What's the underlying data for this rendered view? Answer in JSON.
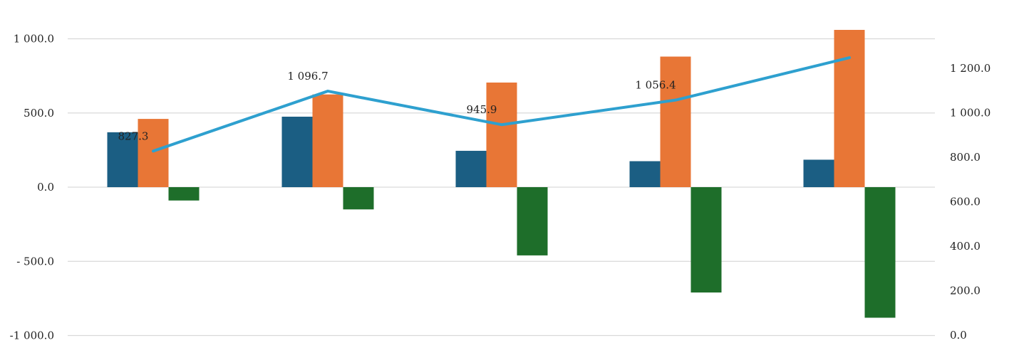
{
  "chart_data": {
    "type": "bar",
    "categories": [
      "",
      "",
      "",
      "",
      ""
    ],
    "series": [
      {
        "values": [
          370,
          475,
          245,
          175,
          185
        ],
        "color": "#1b5e83",
        "axis": "left",
        "kind": "bar"
      },
      {
        "values": [
          460,
          625,
          705,
          880,
          1060
        ],
        "color": "#e87636",
        "axis": "left",
        "kind": "bar"
      },
      {
        "values": [
          -90,
          -150,
          -460,
          -710,
          -880
        ],
        "color": "#1e6e2a",
        "axis": "left",
        "kind": "bar"
      },
      {
        "values": [
          827.3,
          1096.7,
          945.9,
          1056.4,
          1247
        ],
        "color": "#2ea0cf",
        "axis": "right",
        "kind": "line",
        "labels": [
          "827.3",
          "1 096.7",
          "945.9",
          "1 056.4",
          ""
        ]
      }
    ],
    "y_left": {
      "ylim": [
        -1000,
        1000
      ],
      "ticks": [
        1000,
        500,
        0,
        -500,
        -1000
      ],
      "tick_labels": [
        "1 000.0",
        "500.0",
        "0.0",
        "- 500.0",
        "-1 000.0"
      ]
    },
    "y_right": {
      "ylim": [
        0,
        1200
      ],
      "ticks": [
        1200,
        1000,
        800,
        600,
        400,
        200,
        0
      ],
      "tick_labels": [
        "1 200.0",
        "1 000.0",
        "800.0",
        "600.0",
        "400.0",
        "200.0",
        "0.0"
      ]
    },
    "grid": true,
    "legend": "none",
    "title": "",
    "xlabel": "",
    "ylabel": ""
  }
}
